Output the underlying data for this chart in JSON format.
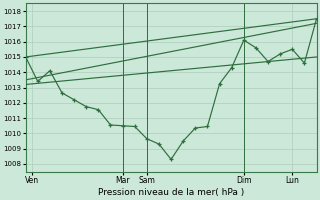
{
  "xlabel": "Pression niveau de la mer( hPa )",
  "bg_color": "#cce8d8",
  "grid_color": "#b0ccbc",
  "line_color": "#2d6e3e",
  "ylim": [
    1007.5,
    1018.5
  ],
  "yticks": [
    1008,
    1009,
    1010,
    1011,
    1012,
    1013,
    1014,
    1015,
    1016,
    1017,
    1018
  ],
  "xlim": [
    0,
    24
  ],
  "xtick_positions": [
    0.5,
    8,
    10,
    18,
    22
  ],
  "xtick_labels": [
    "Ven",
    "Mar",
    "Sam",
    "Dim",
    "Lun"
  ],
  "vline_positions": [
    8,
    10,
    18
  ],
  "forecast_lines": [
    [
      [
        0,
        1015.0
      ],
      [
        24,
        1017.5
      ]
    ],
    [
      [
        0,
        1013.5
      ],
      [
        24,
        1017.2
      ]
    ],
    [
      [
        0,
        1013.2
      ],
      [
        24,
        1015.0
      ]
    ]
  ],
  "detailed_x": [
    0,
    1,
    2,
    3,
    4,
    5,
    6,
    7,
    8,
    9,
    10,
    11,
    12,
    13,
    14,
    15,
    16,
    17,
    18,
    19,
    20,
    21,
    22,
    23,
    24
  ],
  "detailed_y": [
    1015.0,
    1013.4,
    1014.1,
    1012.65,
    1012.2,
    1011.75,
    1011.55,
    1010.55,
    1010.5,
    1010.45,
    1009.65,
    1009.3,
    1008.3,
    1009.5,
    1010.35,
    1010.45,
    1013.25,
    1014.3,
    1016.1,
    1015.6,
    1014.7,
    1015.2,
    1015.5,
    1014.6,
    1017.5
  ]
}
